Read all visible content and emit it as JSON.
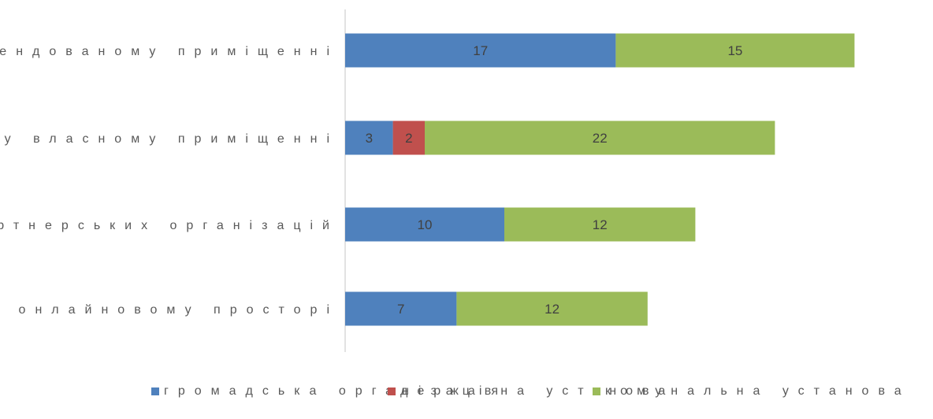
{
  "chart_data": {
    "type": "bar",
    "orientation": "horizontal",
    "stacked": true,
    "categories": [
      "в орендованому приміщенні",
      "у власному приміщенні",
      "у приміщенні партнерських організацій",
      "в онлайновому просторі"
    ],
    "series": [
      {
        "name": "громадська організація",
        "color": "#4F81BD",
        "values": [
          17,
          3,
          10,
          7
        ]
      },
      {
        "name": "державна установа",
        "color": "#C0504D",
        "values": [
          0,
          2,
          0,
          0
        ]
      },
      {
        "name": "комунальна установа",
        "color": "#9BBB59",
        "values": [
          15,
          22,
          12,
          12
        ]
      }
    ],
    "xlim": [
      0,
      37
    ],
    "grid": false,
    "legend_position": "bottom",
    "data_labels": true
  }
}
